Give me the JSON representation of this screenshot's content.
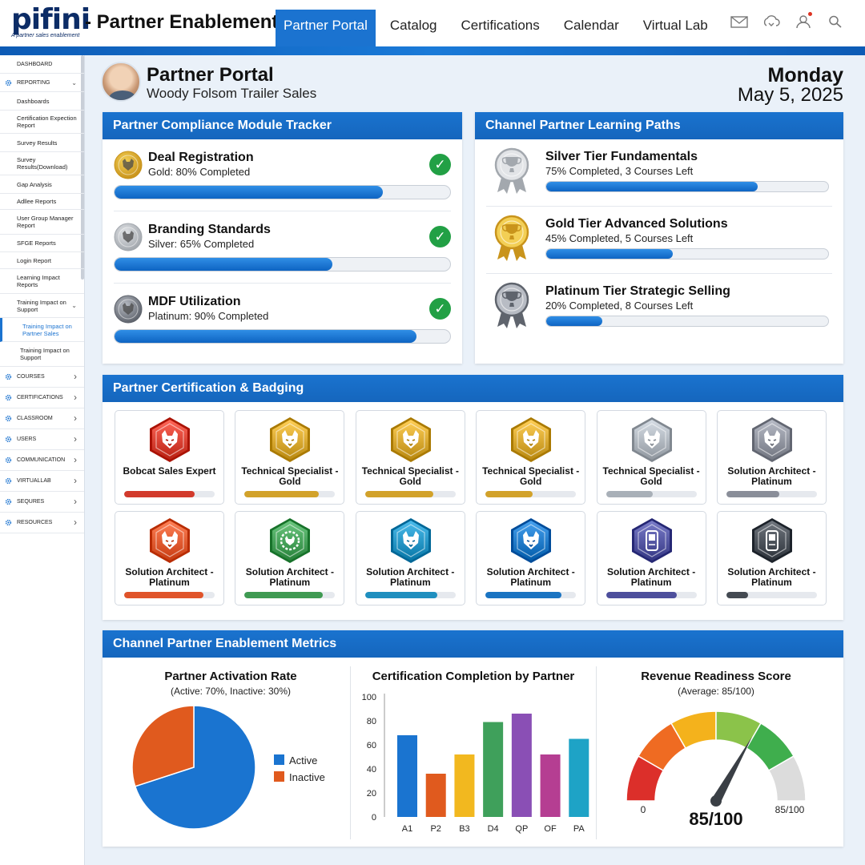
{
  "app": {
    "logo_text": "pifini",
    "logo_tagline": "A partner sales enablement",
    "title": "- Partner Enablement"
  },
  "nav": {
    "items": [
      "Partner Portal",
      "Catalog",
      "Certifications",
      "Calendar",
      "Virtual Lab"
    ],
    "active_index": 0
  },
  "header_icons": [
    "mail-icon",
    "cloud-sync-icon",
    "user-icon",
    "search-icon"
  ],
  "sidebar": {
    "items": [
      {
        "label": "DASHBOARD",
        "type": "section",
        "icon": ""
      },
      {
        "label": "REPORTING",
        "type": "section",
        "icon": "gear-icon",
        "expanded": true
      },
      {
        "label": "Dashboards",
        "type": "child"
      },
      {
        "label": "Certification Expection Report",
        "type": "child"
      },
      {
        "label": "Survey Results",
        "type": "child"
      },
      {
        "label": "Survey Results(Download)",
        "type": "child"
      },
      {
        "label": "Gap Analysis",
        "type": "child"
      },
      {
        "label": "Adllee Reports",
        "type": "child"
      },
      {
        "label": "User Group Manager Report",
        "type": "child"
      },
      {
        "label": "SFGE Reports",
        "type": "child"
      },
      {
        "label": "Login Report",
        "type": "child"
      },
      {
        "label": "Learning Impact Reports",
        "type": "child"
      },
      {
        "label": "Training Impact on Support",
        "type": "child",
        "expanded": true
      },
      {
        "label": "Training Impact on Partner Sales",
        "type": "child2",
        "active": true
      },
      {
        "label": "Training Impact on Support",
        "type": "child2"
      },
      {
        "label": "COURSES",
        "type": "section",
        "icon": "gear-icon"
      },
      {
        "label": "CERTIFICATIONS",
        "type": "section",
        "icon": "gear-icon"
      },
      {
        "label": "CLASSROOM",
        "type": "section",
        "icon": "gear-icon"
      },
      {
        "label": "USERS",
        "type": "section",
        "icon": "gear-icon"
      },
      {
        "label": "COMMUNICATION",
        "type": "section",
        "icon": "gear-icon"
      },
      {
        "label": "VIRTUALLAB",
        "type": "section",
        "icon": "gear-icon"
      },
      {
        "label": "SEQURES",
        "type": "section",
        "icon": "gear-icon"
      },
      {
        "label": "RESOURCES",
        "type": "section",
        "icon": "gear-icon"
      }
    ]
  },
  "page": {
    "title": "Partner Portal",
    "subtitle": "Woody Folsom Trailer Sales",
    "day": "Monday",
    "date": "May 5, 2025"
  },
  "compliance": {
    "heading": "Partner Compliance Module Tracker",
    "modules": [
      {
        "title": "Deal Registration",
        "status": "Gold: 80% Completed",
        "progress": 0.8,
        "tier": "gold"
      },
      {
        "title": "Branding Standards",
        "status": "Silver: 65% Completed",
        "progress": 0.65,
        "tier": "silver"
      },
      {
        "title": "MDF Utilization",
        "status": "Platinum: 90% Completed",
        "progress": 0.9,
        "tier": "platinum"
      }
    ]
  },
  "learning_paths": {
    "heading": "Channel Partner Learning Paths",
    "paths": [
      {
        "title": "Silver Tier Fundamentals",
        "status": "75% Completed, 3 Courses Left",
        "progress": 0.75,
        "tier": "silver"
      },
      {
        "title": "Gold Tier Advanced Solutions",
        "status": "45% Completed, 5 Courses Left",
        "progress": 0.45,
        "tier": "gold"
      },
      {
        "title": "Platinum Tier Strategic Selling",
        "status": "20% Completed, 8 Courses Left",
        "progress": 0.2,
        "tier": "platinum"
      }
    ]
  },
  "badging": {
    "heading": "Partner Certification & Badging",
    "badges": [
      {
        "label": "Bobcat Sales Expert",
        "color": "#d23a2c",
        "progress": 0.78,
        "icon": "bobcat-icon"
      },
      {
        "label": "Technical Specialist - Gold",
        "color": "#d2a22a",
        "progress": 0.82,
        "icon": "bobcat-icon"
      },
      {
        "label": "Technical Specialist - Gold",
        "color": "#d2a22a",
        "progress": 0.75,
        "icon": "bobcat-icon"
      },
      {
        "label": "Technical Specialist - Gold",
        "color": "#d2a22a",
        "progress": 0.52,
        "icon": "bobcat-icon"
      },
      {
        "label": "Technical Specialist - Gold",
        "color": "#a9b0b8",
        "progress": 0.52,
        "icon": "bobcat-icon"
      },
      {
        "label": "Solution Architect - Platinum",
        "color": "#8a8e99",
        "progress": 0.58,
        "icon": "bobcat-icon"
      },
      {
        "label": "Solution Architect - Platinum",
        "color": "#e0542a",
        "progress": 0.88,
        "icon": "bobcat-icon"
      },
      {
        "label": "Solution Architect - Platinum",
        "color": "#3f9a52",
        "progress": 0.86,
        "icon": "gear-bobcat-icon"
      },
      {
        "label": "Solution Architect - Platinum",
        "color": "#1f8fbf",
        "progress": 0.8,
        "icon": "bobcat-icon"
      },
      {
        "label": "Solution Architect - Platinum",
        "color": "#1a74c2",
        "progress": 0.84,
        "icon": "bobcat-icon"
      },
      {
        "label": "Solution Architect - Platinum",
        "color": "#4d4f9c",
        "progress": 0.78,
        "icon": "device-icon"
      },
      {
        "label": "Solution Architect - Platinum",
        "color": "#444a52",
        "progress": 0.24,
        "icon": "device-icon"
      }
    ]
  },
  "metrics": {
    "heading": "Channel Partner Enablement Metrics"
  },
  "chart_data": [
    {
      "type": "pie",
      "title": "Partner Activation Rate",
      "subtitle": "(Active: 70%, Inactive: 30%)",
      "labels": [
        "Active",
        "Inactive"
      ],
      "values": [
        70,
        30
      ],
      "colors": [
        "#1a74d0",
        "#e05a1e"
      ],
      "legend": "right"
    },
    {
      "type": "bar",
      "title": "Certification Completion by Partner",
      "categories": [
        "A1",
        "P2",
        "B3",
        "D4",
        "QP",
        "OF",
        "PA"
      ],
      "values": [
        68,
        36,
        52,
        79,
        86,
        52,
        65
      ],
      "colors": [
        "#1a74d0",
        "#e05a1e",
        "#f2b81f",
        "#3fa05b",
        "#8a4fb5",
        "#b53e92",
        "#1ea3c6"
      ],
      "ylim": [
        0,
        100
      ],
      "yticks": [
        0,
        20,
        40,
        60,
        80,
        100
      ],
      "grid": false
    },
    {
      "type": "gauge",
      "title": "Revenue Readiness Score",
      "subtitle": "(Average: 85/100)",
      "value": 85,
      "min": 0,
      "max": 100,
      "value_label": "85/100",
      "min_label": "0",
      "max_label": "85/100",
      "band_colors": [
        "#dc2f2a",
        "#ef6b22",
        "#f4b21c",
        "#8bc34a",
        "#3fae4d",
        "#dcdcdc"
      ]
    }
  ]
}
